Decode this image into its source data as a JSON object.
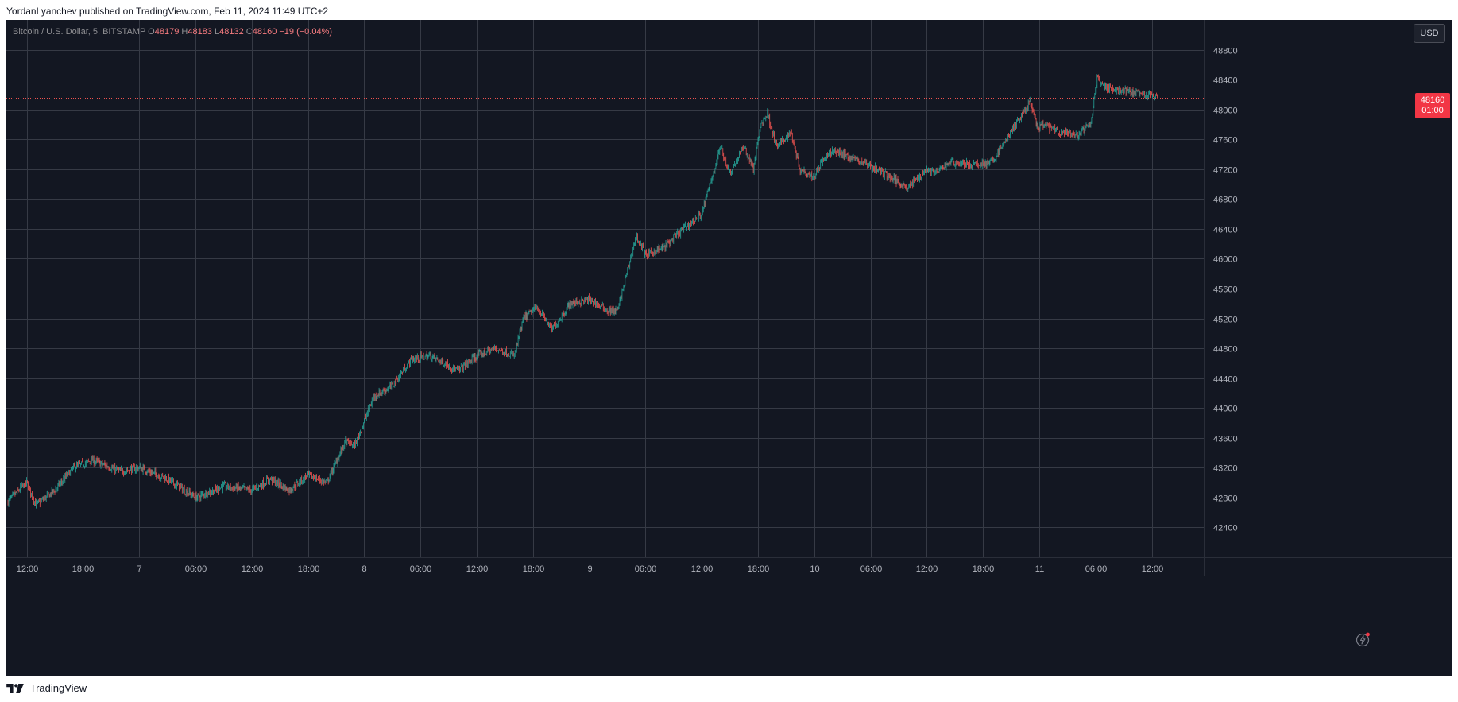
{
  "header": {
    "publisher": "YordanLyanchev",
    "published_text": "published on TradingView.com, Feb 11, 2024 11:49 UTC+2"
  },
  "legend": {
    "symbol": "Bitcoin / U.S. Dollar, 5, BITSTAMP",
    "open_label": "O",
    "open": "48179",
    "high_label": "H",
    "high": "48183",
    "low_label": "L",
    "low": "48132",
    "close_label": "C",
    "close": "48160",
    "change": "−19 (−0.04%)"
  },
  "currency_button": "USD",
  "last_price": {
    "price": "48160",
    "countdown": "01:00",
    "value": 48160
  },
  "footer": {
    "brand": "TradingView"
  },
  "colors": {
    "background": "#131722",
    "grid": "#363a45",
    "up": "#26a69a",
    "down": "#ef5350",
    "price_badge": "#f23645",
    "axis_text": "#b2b5be"
  },
  "icons": {
    "footer_logo": "tradingview-logo-icon",
    "alert": "lightning-icon"
  },
  "chart_data": {
    "type": "candlestick",
    "symbol": "BTCUSD",
    "interval": "5",
    "ylim": [
      42000,
      49200
    ],
    "y_ticks": [
      42400,
      42800,
      43200,
      43600,
      44000,
      44400,
      44800,
      45200,
      45600,
      46000,
      46400,
      46800,
      47200,
      47600,
      48000,
      48400,
      48800
    ],
    "y_tick_labels": [
      "42400",
      "42800",
      "43200",
      "43600",
      "44000",
      "44400",
      "44800",
      "45200",
      "45600",
      "46000",
      "46400",
      "46800",
      "47200",
      "47600",
      "48000",
      "48400",
      "48800"
    ],
    "x_start": "Feb 6, 2024 10:00",
    "x_end": "Feb 11, 2024 12:40",
    "x_tick_labels": [
      {
        "label": "12:00",
        "hours": 2
      },
      {
        "label": "18:00",
        "hours": 8
      },
      {
        "label": "7",
        "hours": 14
      },
      {
        "label": "06:00",
        "hours": 20
      },
      {
        "label": "12:00",
        "hours": 26
      },
      {
        "label": "18:00",
        "hours": 32
      },
      {
        "label": "8",
        "hours": 38
      },
      {
        "label": "06:00",
        "hours": 44
      },
      {
        "label": "12:00",
        "hours": 50
      },
      {
        "label": "18:00",
        "hours": 56
      },
      {
        "label": "9",
        "hours": 62
      },
      {
        "label": "06:00",
        "hours": 68
      },
      {
        "label": "12:00",
        "hours": 74
      },
      {
        "label": "18:00",
        "hours": 80
      },
      {
        "label": "10",
        "hours": 86
      },
      {
        "label": "06:00",
        "hours": 92
      },
      {
        "label": "12:00",
        "hours": 98
      },
      {
        "label": "18:00",
        "hours": 104
      },
      {
        "label": "11",
        "hours": 110
      },
      {
        "label": "06:00",
        "hours": 116
      },
      {
        "label": "12:00",
        "hours": 122
      }
    ],
    "price_path_hours": [
      0,
      2,
      3,
      5,
      7,
      9,
      12,
      14,
      17,
      20,
      23,
      26,
      28,
      30,
      32,
      34,
      36,
      37,
      39,
      41,
      43,
      45,
      48,
      50,
      52,
      54,
      55,
      56.5,
      58,
      60,
      62,
      64,
      65,
      67,
      68,
      70,
      72,
      74,
      76,
      77,
      78.5,
      79.5,
      80.3,
      81,
      82,
      82.8,
      83.5,
      84.5,
      86,
      86.5,
      88,
      90,
      92,
      94,
      96,
      98,
      99,
      100.5,
      103,
      105,
      107,
      109,
      109.8,
      110.5,
      112,
      114,
      115.5,
      116.2,
      117,
      119,
      121,
      122.7
    ],
    "price_path_values": [
      42750,
      43000,
      42700,
      42900,
      43200,
      43300,
      43150,
      43200,
      43050,
      42800,
      42950,
      42900,
      43050,
      42900,
      43100,
      43000,
      43550,
      43500,
      44150,
      44300,
      44650,
      44700,
      44500,
      44700,
      44800,
      44700,
      45200,
      45350,
      45050,
      45400,
      45450,
      45300,
      45300,
      46300,
      46050,
      46150,
      46400,
      46600,
      47500,
      47150,
      47500,
      47200,
      47800,
      47950,
      47500,
      47600,
      47700,
      47200,
      47100,
      47250,
      47450,
      47350,
      47250,
      47100,
      46950,
      47200,
      47150,
      47300,
      47250,
      47300,
      47700,
      48100,
      47750,
      47800,
      47700,
      47650,
      47800,
      48450,
      48300,
      48250,
      48200,
      48160
    ]
  }
}
